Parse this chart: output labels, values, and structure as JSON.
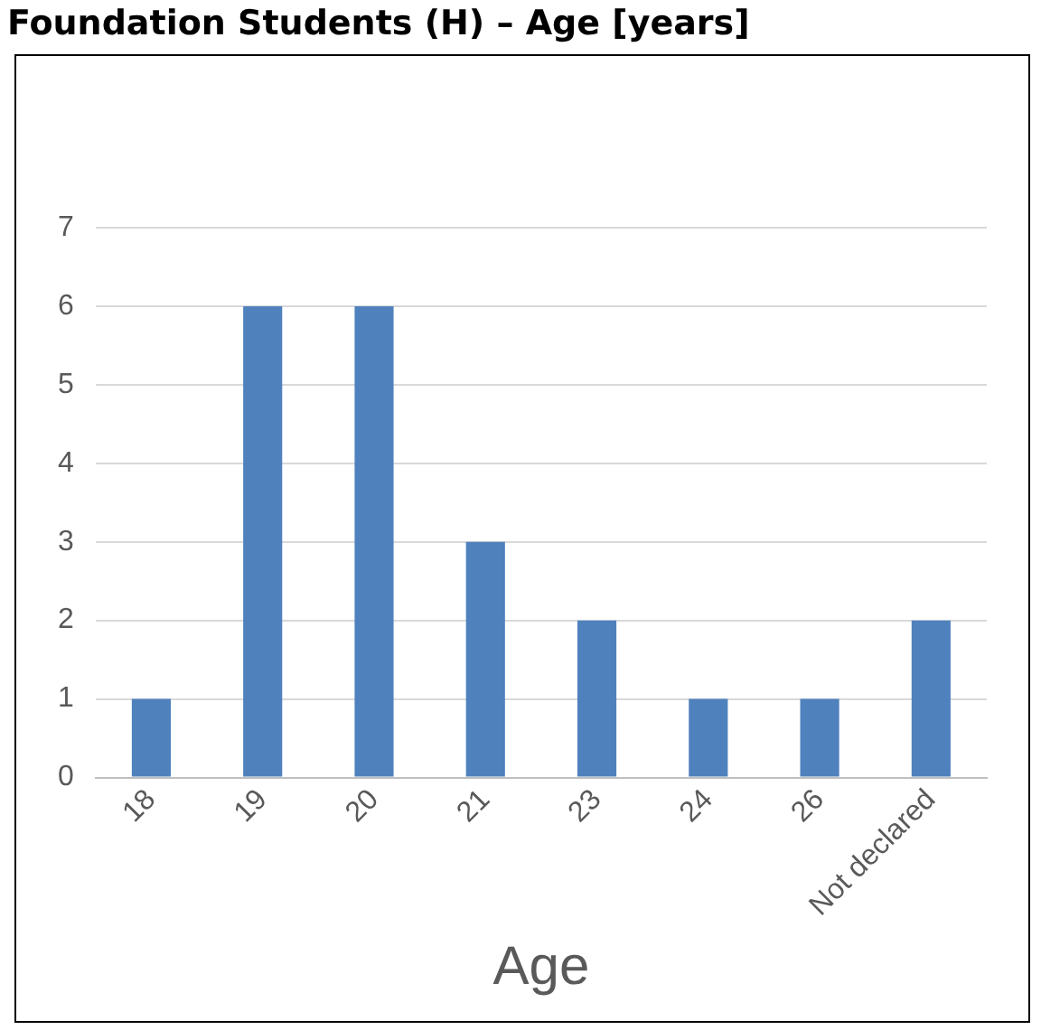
{
  "chart_data": {
    "type": "bar",
    "title": "Foundation Students (H) – Age [years]",
    "xlabel": "Age",
    "categories": [
      "18",
      "19",
      "20",
      "21",
      "23",
      "24",
      "26",
      "Not declared"
    ],
    "values": [
      1,
      6,
      6,
      3,
      2,
      1,
      1,
      2
    ],
    "color": "#4f81bd",
    "ylim": [
      0,
      7
    ],
    "yticks": [
      0,
      1,
      2,
      3,
      4,
      5,
      6,
      7
    ],
    "grid": "y",
    "legend": false
  }
}
